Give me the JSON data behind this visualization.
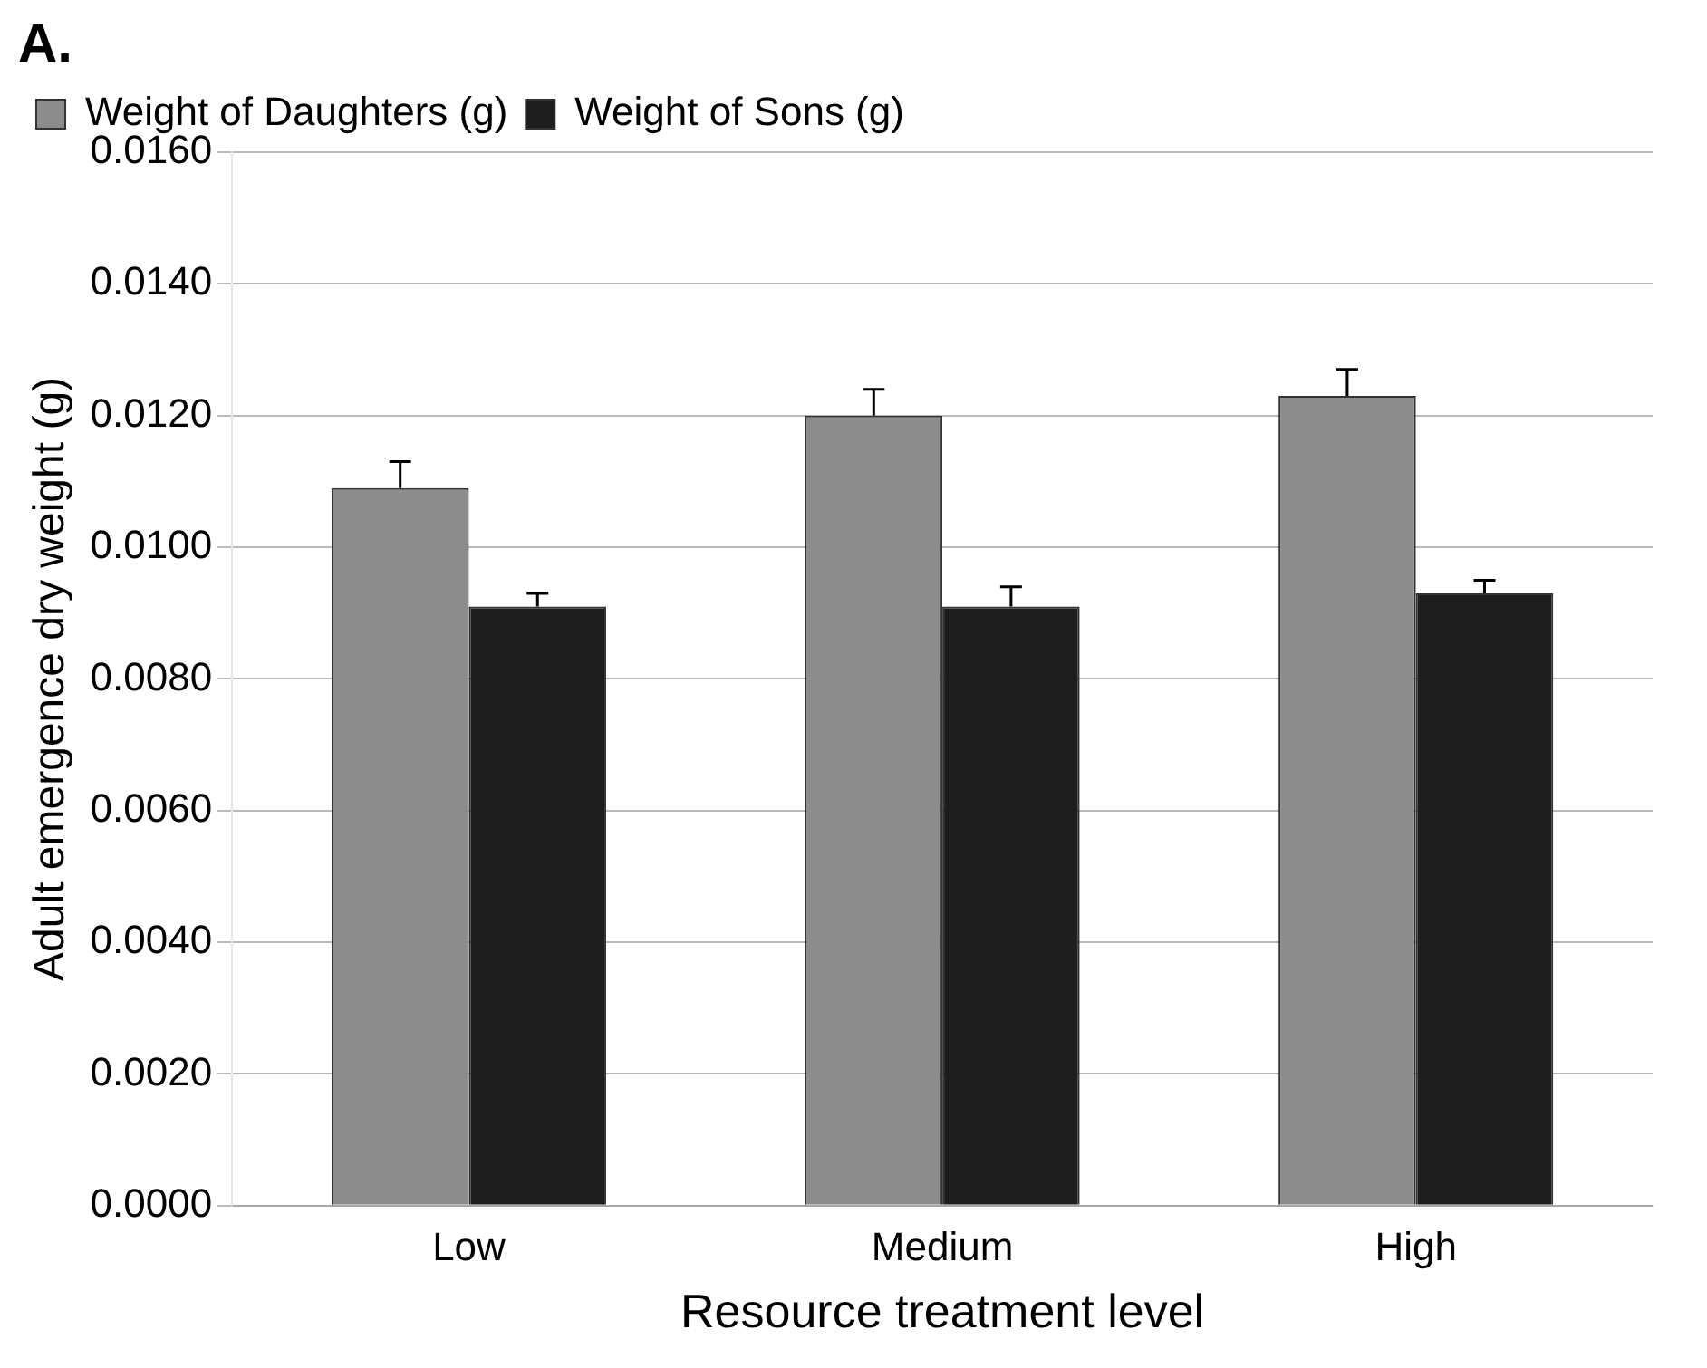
{
  "chart_data": {
    "type": "bar",
    "xlabel": "Resource treatment level",
    "ylabel": "Adult emergence dry weight (g)",
    "annotations": [
      "A."
    ],
    "categories": [
      "Low",
      "Medium",
      "High"
    ],
    "series": [
      {
        "name": "Weight of Daughters (g)",
        "color": "#8c8c8c",
        "values": [
          0.0109,
          0.012,
          0.0123
        ],
        "errors": [
          0.0004,
          0.0004,
          0.0004
        ]
      },
      {
        "name": "Weight of Sons (g)",
        "color": "#1e1e1e",
        "values": [
          0.0091,
          0.0091,
          0.0093
        ],
        "errors": [
          0.0002,
          0.0003,
          0.0002
        ]
      }
    ],
    "ylim": [
      0,
      0.016
    ],
    "yticks": [
      {
        "value": 0,
        "label": "0.0000"
      },
      {
        "value": 0.002,
        "label": "0.0020"
      },
      {
        "value": 0.004,
        "label": "0.0040"
      },
      {
        "value": 0.006,
        "label": "0.0060"
      },
      {
        "value": 0.008,
        "label": "0.0080"
      },
      {
        "value": 0.01,
        "label": "0.0100"
      },
      {
        "value": 0.012,
        "label": "0.0120"
      },
      {
        "value": 0.014,
        "label": "0.0140"
      },
      {
        "value": 0.016,
        "label": "0.0160"
      }
    ],
    "grid": "y",
    "legend": "top left"
  }
}
